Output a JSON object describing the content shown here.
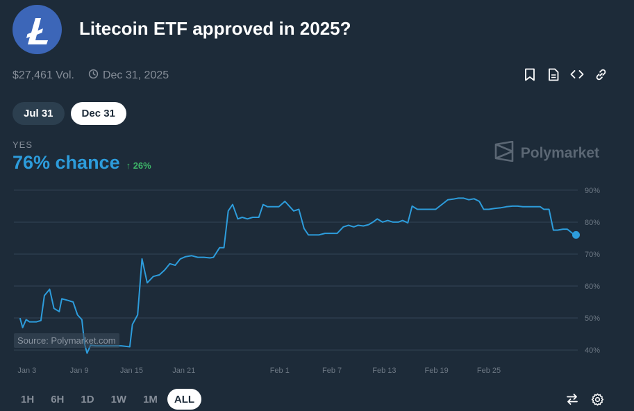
{
  "header": {
    "title": "Litecoin ETF approved in 2025?",
    "logo_icon": "litecoin-logo",
    "volume": "$27,461 Vol.",
    "end_date": "Dec 31, 2025"
  },
  "actions": [
    "bookmark-icon",
    "document-icon",
    "embed-code-icon",
    "link-icon"
  ],
  "date_tabs": [
    {
      "label": "Jul 31",
      "active": false
    },
    {
      "label": "Dec 31",
      "active": true
    }
  ],
  "outcome": {
    "label": "YES",
    "chance": "76% chance",
    "change": "↑ 26%"
  },
  "brand": {
    "name": "Polymarket"
  },
  "watermark": "Source: Polymarket.com",
  "range_tabs": [
    {
      "label": "1H",
      "active": false
    },
    {
      "label": "6H",
      "active": false
    },
    {
      "label": "1D",
      "active": false
    },
    {
      "label": "1W",
      "active": false
    },
    {
      "label": "1M",
      "active": false
    },
    {
      "label": "ALL",
      "active": true
    }
  ],
  "tools": [
    "swap-arrows-icon",
    "settings-gear-icon"
  ],
  "colors": {
    "background": "#1d2b39",
    "line": "#2d9cdb",
    "grid": "#344656",
    "up": "#3db468"
  },
  "chart_data": {
    "type": "line",
    "series": [
      {
        "values": [
          [
            2.2,
            50
          ],
          [
            2.5,
            47
          ],
          [
            2.9,
            49.5
          ],
          [
            3.3,
            48.8
          ],
          [
            4.1,
            48.8
          ],
          [
            4.6,
            49.2
          ],
          [
            5.0,
            57
          ],
          [
            5.6,
            59
          ],
          [
            6.1,
            53
          ],
          [
            6.7,
            52
          ],
          [
            7.0,
            56
          ],
          [
            7.7,
            55.5
          ],
          [
            8.3,
            55
          ],
          [
            8.8,
            51
          ],
          [
            9.3,
            49.5
          ],
          [
            9.6,
            42
          ],
          [
            9.9,
            39
          ],
          [
            10.3,
            41.5
          ],
          [
            10.9,
            41.3
          ],
          [
            11.6,
            41.3
          ],
          [
            12.4,
            41.3
          ],
          [
            13.2,
            41.3
          ],
          [
            13.8,
            41.3
          ],
          [
            14.8,
            41
          ],
          [
            15.1,
            48
          ],
          [
            15.7,
            51
          ],
          [
            16.2,
            68.5
          ],
          [
            16.8,
            61
          ],
          [
            17.5,
            63
          ],
          [
            18.2,
            63.5
          ],
          [
            18.8,
            65
          ],
          [
            19.4,
            67
          ],
          [
            20.0,
            66.5
          ],
          [
            20.6,
            68.5
          ],
          [
            21.2,
            69.2
          ],
          [
            21.9,
            69.5
          ],
          [
            22.6,
            69
          ],
          [
            23.3,
            69
          ],
          [
            24.0,
            68.8
          ],
          [
            24.4,
            69
          ],
          [
            25.1,
            72
          ],
          [
            25.6,
            72
          ],
          [
            26.1,
            83.5
          ],
          [
            26.6,
            85.5
          ],
          [
            27.2,
            81
          ],
          [
            27.7,
            81.5
          ],
          [
            28.3,
            81
          ],
          [
            28.9,
            81.5
          ],
          [
            29.6,
            81.5
          ],
          [
            30.1,
            85.5
          ],
          [
            30.6,
            84.8
          ],
          [
            31.2,
            84.8
          ],
          [
            31.9,
            84.8
          ],
          [
            32.6,
            86.5
          ],
          [
            33.1,
            85
          ],
          [
            33.6,
            83.5
          ],
          [
            34.2,
            84
          ],
          [
            34.8,
            78
          ],
          [
            35.3,
            76
          ],
          [
            35.9,
            76
          ],
          [
            36.5,
            76
          ],
          [
            37.2,
            76.5
          ],
          [
            37.9,
            76.5
          ],
          [
            38.6,
            76.5
          ],
          [
            39.3,
            78.5
          ],
          [
            39.9,
            79
          ],
          [
            40.5,
            78.5
          ],
          [
            41.0,
            79
          ],
          [
            41.6,
            78.8
          ],
          [
            42.2,
            79.2
          ],
          [
            42.7,
            80
          ],
          [
            43.2,
            81
          ],
          [
            43.8,
            80
          ],
          [
            44.4,
            80.5
          ],
          [
            45.0,
            80
          ],
          [
            45.6,
            80
          ],
          [
            46.1,
            80.5
          ],
          [
            46.7,
            79.8
          ],
          [
            47.2,
            85
          ],
          [
            47.8,
            84
          ],
          [
            48.5,
            84
          ],
          [
            49.2,
            84
          ],
          [
            49.9,
            84
          ],
          [
            50.6,
            85.5
          ],
          [
            51.3,
            87
          ],
          [
            51.9,
            87.2
          ],
          [
            52.5,
            87.5
          ],
          [
            53.1,
            87.5
          ],
          [
            53.7,
            87
          ],
          [
            54.3,
            87.3
          ],
          [
            54.9,
            86.5
          ],
          [
            55.4,
            84
          ],
          [
            56.0,
            84
          ],
          [
            56.7,
            84.3
          ],
          [
            57.4,
            84.5
          ],
          [
            58.0,
            84.8
          ],
          [
            58.7,
            85
          ],
          [
            59.3,
            85
          ],
          [
            59.9,
            84.8
          ],
          [
            60.6,
            84.8
          ],
          [
            61.3,
            84.8
          ],
          [
            61.9,
            84.8
          ],
          [
            62.3,
            84
          ],
          [
            62.9,
            84
          ],
          [
            63.4,
            77.5
          ],
          [
            63.9,
            77.5
          ],
          [
            64.5,
            77.8
          ],
          [
            65.0,
            77.8
          ],
          [
            65.6,
            76.5
          ],
          [
            66.0,
            76
          ]
        ]
      }
    ],
    "x_ticks": [
      {
        "label": "Jan 3",
        "value": 3
      },
      {
        "label": "Jan 9",
        "value": 9
      },
      {
        "label": "Jan 15",
        "value": 15
      },
      {
        "label": "Jan 21",
        "value": 21
      },
      {
        "label": "Feb 1",
        "value": 32
      },
      {
        "label": "Feb 7",
        "value": 38
      },
      {
        "label": "Feb 13",
        "value": 44
      },
      {
        "label": "Feb 19",
        "value": 50
      },
      {
        "label": "Feb 25",
        "value": 56
      }
    ],
    "y_ticks": [
      {
        "label": "90%",
        "value": 90
      },
      {
        "label": "80%",
        "value": 80
      },
      {
        "label": "70%",
        "value": 70
      },
      {
        "label": "60%",
        "value": 60
      },
      {
        "label": "50%",
        "value": 50
      },
      {
        "label": "40%",
        "value": 40
      }
    ],
    "xlim": [
      1.5,
      66.2
    ],
    "ylim": [
      38.5,
      91.5
    ],
    "grid": true,
    "y_axis_position": "right",
    "end_marker": true
  }
}
